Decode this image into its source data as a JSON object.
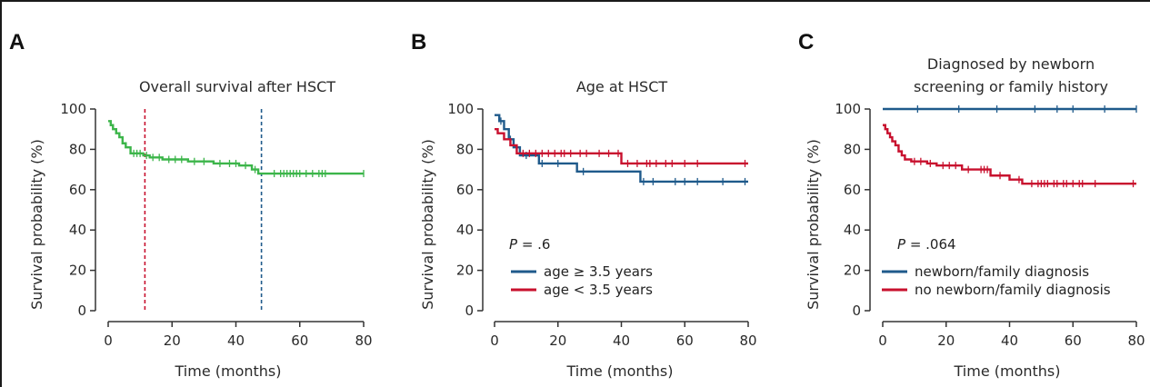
{
  "chart_data": [
    {
      "panel": "A",
      "type": "line",
      "title": "Overall survival after HSCT",
      "xlabel": "Time (months)",
      "ylabel": "Survival probability (%)",
      "xlim": [
        0,
        80
      ],
      "ylim": [
        0,
        100
      ],
      "xticks": [
        0,
        20,
        40,
        60,
        80
      ],
      "yticks": [
        0,
        20,
        40,
        60,
        80,
        100
      ],
      "reference_lines": [
        {
          "x": 11.5,
          "color": "#c8102e"
        },
        {
          "x": 48,
          "color": "#1f5a8b"
        }
      ],
      "series": [
        {
          "color": "#3cb54a",
          "x": [
            0,
            0.8,
            1.5,
            2.5,
            3.5,
            4.5,
            5.5,
            7,
            11,
            13,
            17,
            25,
            33,
            41,
            45,
            47,
            80
          ],
          "y": [
            94,
            92,
            90,
            88,
            86,
            83,
            81,
            78,
            77,
            76,
            75,
            74,
            73,
            72,
            70,
            68,
            68
          ],
          "censor_x": [
            8,
            9,
            10,
            12,
            14,
            16,
            19,
            21,
            23,
            27,
            30,
            35,
            38,
            40,
            43,
            46,
            52,
            54,
            55,
            56,
            57,
            58,
            59,
            60,
            62,
            64,
            66,
            67,
            68,
            80
          ]
        }
      ]
    },
    {
      "panel": "B",
      "type": "line",
      "title": "Age at HSCT",
      "xlabel": "Time (months)",
      "ylabel": "Survival probability (%)",
      "xlim": [
        0,
        80
      ],
      "ylim": [
        0,
        100
      ],
      "xticks": [
        0,
        20,
        40,
        60,
        80
      ],
      "yticks": [
        0,
        20,
        40,
        60,
        80,
        100
      ],
      "annotation": {
        "p_italic": "P",
        "p_rest": " = .6"
      },
      "legend_position": "bottom-left",
      "series": [
        {
          "name": "age ≥ 3.5 years",
          "color": "#1f5a8b",
          "x": [
            0,
            1.5,
            3,
            4.5,
            6,
            8,
            14,
            26,
            46,
            80
          ],
          "y": [
            97,
            94,
            90,
            85,
            81,
            77,
            73,
            69,
            64,
            64
          ],
          "censor_x": [
            2,
            5,
            10,
            15,
            20,
            28,
            47,
            50,
            57,
            60,
            64,
            72,
            79
          ]
        },
        {
          "name": "age < 3.5 years",
          "color": "#c8102e",
          "x": [
            0,
            1,
            3,
            5,
            7,
            40,
            80
          ],
          "y": [
            90,
            88,
            85,
            82,
            78,
            73,
            73
          ],
          "censor_x": [
            9,
            11,
            13,
            15,
            17,
            19,
            21,
            22,
            24,
            27,
            29,
            33,
            36,
            39,
            42,
            45,
            48,
            49,
            51,
            54,
            56,
            60,
            64,
            79
          ]
        }
      ]
    },
    {
      "panel": "C",
      "type": "line",
      "title": "Diagnosed by newborn screening or family history",
      "title_lines": [
        "Diagnosed by newborn",
        "screening or family history"
      ],
      "xlabel": "Time (months)",
      "ylabel": "Survival probability (%)",
      "xlim": [
        0,
        80
      ],
      "ylim": [
        0,
        100
      ],
      "xticks": [
        0,
        20,
        40,
        60,
        80
      ],
      "yticks": [
        0,
        20,
        40,
        60,
        80,
        100
      ],
      "annotation": {
        "p_italic": "P",
        "p_rest": " = .064"
      },
      "legend_position": "bottom-left",
      "series": [
        {
          "name": "newborn/family diagnosis",
          "color": "#1f5a8b",
          "x": [
            0,
            80
          ],
          "y": [
            100,
            100
          ],
          "censor_x": [
            11,
            24,
            36,
            48,
            55,
            60,
            70,
            80
          ]
        },
        {
          "name": "no newborn/family diagnosis",
          "color": "#c8102e",
          "x": [
            0,
            0.8,
            1.5,
            2.3,
            3,
            4,
            5,
            6,
            7,
            9,
            14,
            17,
            25,
            34,
            40,
            44,
            80
          ],
          "y": [
            92,
            90,
            88,
            86,
            84,
            82,
            79,
            77,
            75,
            74,
            73,
            72,
            70,
            67,
            65,
            63,
            63
          ],
          "censor_x": [
            10,
            12,
            15,
            19,
            21,
            23,
            27,
            31,
            32,
            33,
            37,
            43,
            47,
            49,
            50,
            51,
            52,
            54,
            55,
            57,
            58,
            60,
            62,
            63,
            67,
            79
          ]
        }
      ]
    }
  ],
  "panels": {
    "a": {
      "letter": "A"
    },
    "b": {
      "letter": "B"
    },
    "c": {
      "letter": "C"
    }
  }
}
